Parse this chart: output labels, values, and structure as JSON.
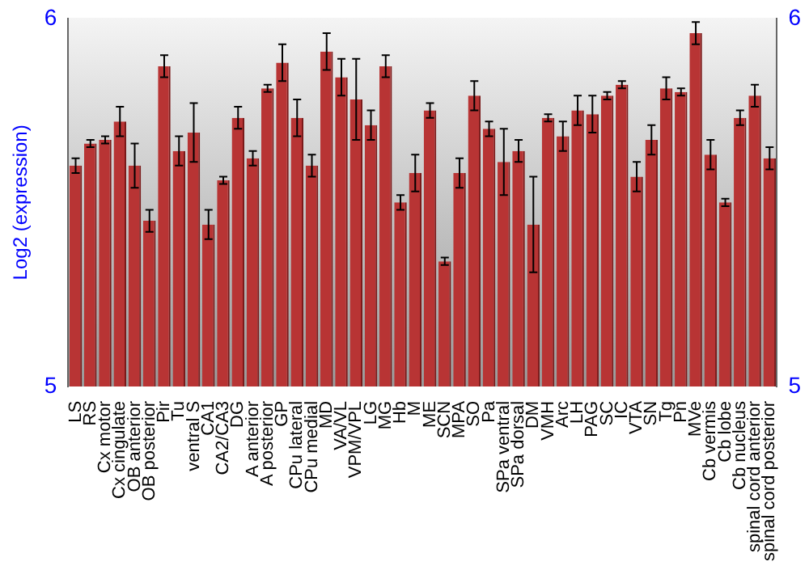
{
  "chart_data": {
    "type": "bar",
    "ylabel": "Log2 (expression)",
    "categories": [
      "LS",
      "RS",
      "Cx motor",
      "Cx cingulate",
      "OB anterior",
      "OB posterior",
      "Pir",
      "Tu",
      "ventral S",
      "CA1",
      "CA2/CA3",
      "DG",
      "A anterior",
      "A posterior",
      "GP",
      "CPu lateral",
      "CPu medial",
      "MD",
      "VA/VL",
      "VPM/VPL",
      "LG",
      "MG",
      "Hb",
      "M",
      "ME",
      "SCN",
      "MPA",
      "SO",
      "Pa",
      "SPa ventral",
      "SPa dorsal",
      "DM",
      "VMH",
      "Arc",
      "LH",
      "PAG",
      "SC",
      "IC",
      "VTA",
      "SN",
      "Tg",
      "Pn",
      "MVe",
      "Cb vermis",
      "Cb lobe",
      "Cb nucleus",
      "spinal cord anterior",
      "spinal cord posterior"
    ],
    "values": [
      5.6,
      5.66,
      5.67,
      5.72,
      5.6,
      5.45,
      5.87,
      5.64,
      5.69,
      5.44,
      5.56,
      5.73,
      5.62,
      5.81,
      5.88,
      5.73,
      5.6,
      5.91,
      5.84,
      5.78,
      5.71,
      5.87,
      5.5,
      5.58,
      5.75,
      5.34,
      5.58,
      5.79,
      5.7,
      5.61,
      5.64,
      5.44,
      5.73,
      5.68,
      5.75,
      5.74,
      5.79,
      5.82,
      5.57,
      5.67,
      5.81,
      5.8,
      5.96,
      5.63,
      5.5,
      5.73,
      5.79,
      5.62
    ],
    "errors": [
      0.02,
      0.01,
      0.01,
      0.04,
      0.06,
      0.03,
      0.03,
      0.04,
      0.08,
      0.04,
      0.01,
      0.03,
      0.02,
      0.01,
      0.05,
      0.05,
      0.03,
      0.05,
      0.05,
      0.11,
      0.04,
      0.03,
      0.02,
      0.05,
      0.02,
      0.01,
      0.04,
      0.04,
      0.02,
      0.09,
      0.03,
      0.13,
      0.01,
      0.04,
      0.04,
      0.05,
      0.01,
      0.01,
      0.04,
      0.04,
      0.03,
      0.01,
      0.03,
      0.04,
      0.01,
      0.02,
      0.03,
      0.03
    ],
    "color": "#b83434",
    "ylim": [
      5,
      6
    ],
    "yticks": [
      5,
      6
    ],
    "y2lim": [
      5,
      6
    ],
    "y2ticks": [
      5,
      6
    ],
    "grid": false
  }
}
